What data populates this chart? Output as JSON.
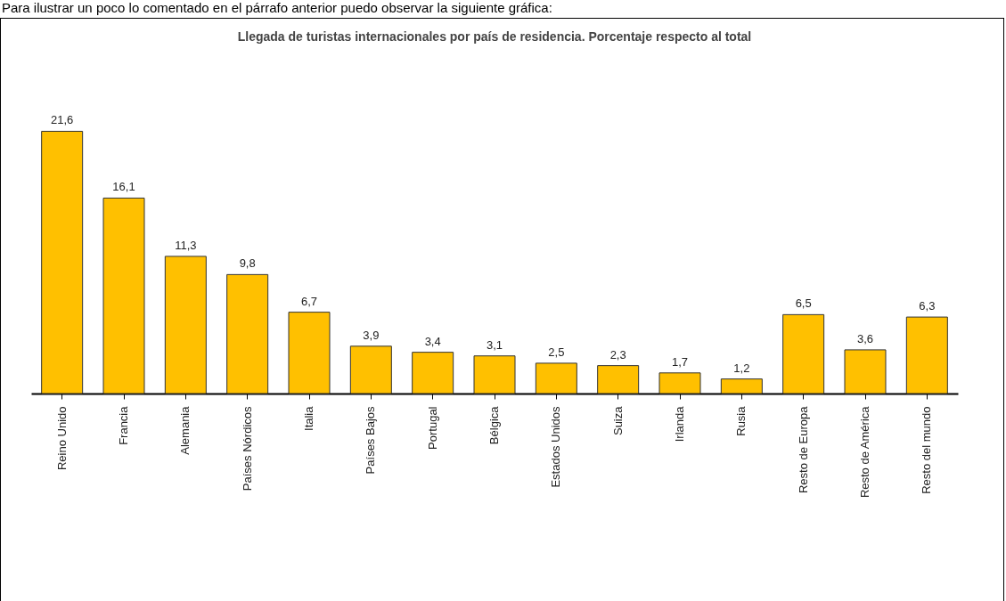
{
  "chart_data": {
    "type": "bar",
    "title": "Llegada de turistas internacionales por país de residencia. Porcentaje respecto al total",
    "annotations": [
      "Para ilustrar un poco lo comentado en el párrafo anterior puedo observar la siguiente gráfica:"
    ],
    "categories": [
      "Reino Unido",
      "Francia",
      "Alemania",
      "Países Nórdicos",
      "Italia",
      "Países Bajos",
      "Portugal",
      "Bélgica",
      "Estados Unidos",
      "Suiza",
      "Irlanda",
      "Rusia",
      "Resto de Europa",
      "Resto de América",
      "Resto del mundo"
    ],
    "values": [
      21.6,
      16.1,
      11.3,
      9.8,
      6.7,
      3.9,
      3.4,
      3.1,
      2.5,
      2.3,
      1.7,
      1.2,
      6.5,
      3.6,
      6.3
    ],
    "value_labels": [
      "21,6",
      "16,1",
      "11,3",
      "9,8",
      "6,7",
      "3,9",
      "3,4",
      "3,1",
      "2,5",
      "2,3",
      "1,7",
      "1,2",
      "6,5",
      "3,6",
      "6,3"
    ],
    "color": "#ffc000",
    "tick_labels": "x"
  }
}
